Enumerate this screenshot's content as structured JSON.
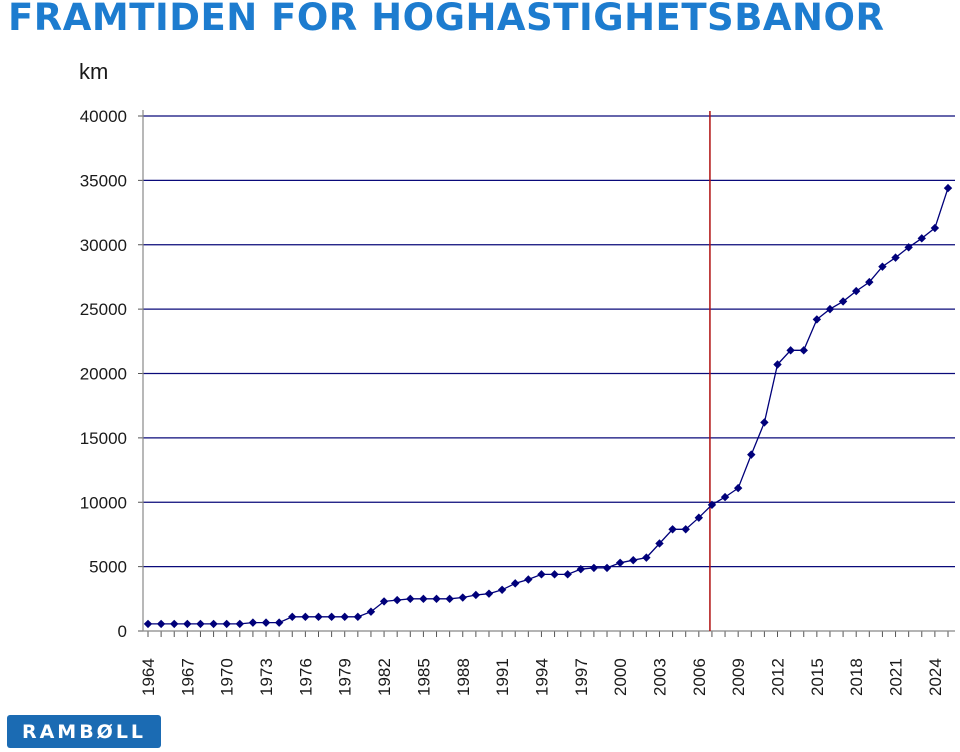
{
  "page": {
    "title": "FRAMTIDEN FÖR HÖGHASTIGHETSBANOR",
    "logo_text": "RAMBØLL"
  },
  "colors": {
    "title": "#1d7ccf",
    "series": "#00007a",
    "grid": "#0a0a7a",
    "marker_line": "#b01010",
    "logo_bg": "#1b6bb3"
  },
  "chart_data": {
    "type": "line",
    "title": "",
    "xlabel": "",
    "ylabel": "km",
    "ylim": [
      0,
      40000
    ],
    "yticks": [
      0,
      5000,
      10000,
      15000,
      20000,
      25000,
      30000,
      35000,
      40000
    ],
    "xlim": [
      1964,
      2025
    ],
    "xtick_labels": [
      "1964",
      "1967",
      "1970",
      "1973",
      "1976",
      "1979",
      "1982",
      "1985",
      "1988",
      "1991",
      "1994",
      "1997",
      "2000",
      "2003",
      "2006",
      "2009",
      "2012",
      "2015",
      "2018",
      "2021",
      "2024"
    ],
    "vertical_marker_year": 2007,
    "grid": "horizontal",
    "legend": "none",
    "series": [
      {
        "x": [
          1964,
          1965,
          1966,
          1967,
          1968,
          1969,
          1970,
          1971,
          1972,
          1973,
          1974,
          1975,
          1976,
          1977,
          1978,
          1979,
          1980,
          1981,
          1982,
          1983,
          1984,
          1985,
          1986,
          1987,
          1988,
          1989,
          1990,
          1991,
          1992,
          1993,
          1994,
          1995,
          1996,
          1997,
          1998,
          1999,
          2000,
          2001,
          2002,
          2003,
          2004,
          2005,
          2006,
          2007,
          2008,
          2009,
          2010,
          2011,
          2012,
          2013,
          2014,
          2015,
          2016,
          2017,
          2018,
          2019,
          2020,
          2021,
          2022,
          2023,
          2024,
          2025
        ],
        "values": [
          550,
          550,
          550,
          550,
          550,
          550,
          550,
          550,
          650,
          650,
          650,
          1100,
          1100,
          1100,
          1100,
          1100,
          1100,
          1500,
          2300,
          2400,
          2500,
          2500,
          2500,
          2500,
          2600,
          2800,
          2900,
          3200,
          3700,
          4000,
          4400,
          4400,
          4400,
          4800,
          4900,
          4900,
          5300,
          5500,
          5700,
          6800,
          7900,
          7900,
          8800,
          9800,
          10400,
          11100,
          13700,
          16200,
          20700,
          21800,
          21800,
          24200,
          25000,
          25600,
          26400,
          27100,
          28300,
          29000,
          29800,
          30500,
          31300,
          34400
        ]
      }
    ]
  }
}
